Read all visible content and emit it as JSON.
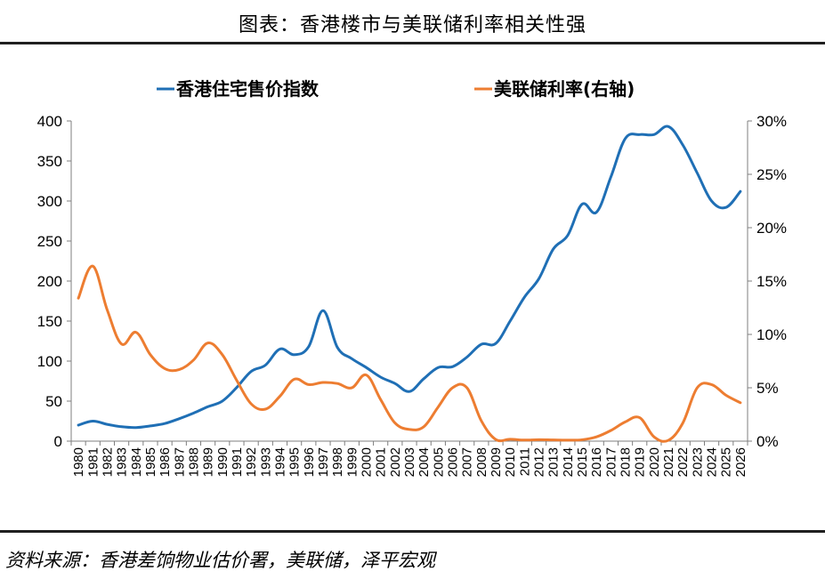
{
  "title": "图表：香港楼市与美联储利率相关性强",
  "source": "资料来源：香港差饷物业估价署，美联储，泽平宏观",
  "chart_data": {
    "type": "line",
    "left_axis": {
      "ylim": [
        0,
        400
      ],
      "ticks": [
        "0",
        "50",
        "100",
        "150",
        "200",
        "250",
        "300",
        "350",
        "400"
      ]
    },
    "right_axis": {
      "ylim": [
        0,
        30
      ],
      "ticks": [
        "0%",
        "5%",
        "10%",
        "15%",
        "20%",
        "25%",
        "30%"
      ]
    },
    "legend_position": "top",
    "grid": false,
    "x": [
      "1980",
      "1981",
      "1982",
      "1983",
      "1984",
      "1985",
      "1986",
      "1987",
      "1988",
      "1989",
      "1990",
      "1991",
      "1992",
      "1993",
      "1994",
      "1995",
      "1996",
      "1997",
      "1998",
      "1999",
      "2000",
      "2001",
      "2002",
      "2003",
      "2004",
      "2005",
      "2006",
      "2007",
      "2008",
      "2009",
      "2010",
      "2011",
      "2012",
      "2013",
      "2014",
      "2015",
      "2016",
      "2017",
      "2018",
      "2019",
      "2020",
      "2021",
      "2022",
      "2023",
      "2024",
      "2025",
      "2026"
    ],
    "series": [
      {
        "name": "香港住宅售价指数",
        "axis": "left",
        "color": "#1f6fb5",
        "values": [
          20,
          25,
          21,
          18,
          17,
          19,
          22,
          28,
          35,
          43,
          50,
          67,
          87,
          95,
          115,
          108,
          118,
          163,
          117,
          103,
          92,
          80,
          72,
          62,
          78,
          92,
          93,
          105,
          121,
          122,
          150,
          180,
          203,
          240,
          257,
          296,
          286,
          330,
          378,
          383,
          383,
          393,
          370,
          335,
          300,
          292,
          312
        ]
      },
      {
        "name": "美联储利率(右轴)",
        "axis": "right",
        "color": "#ed7d31",
        "values": [
          13.4,
          16.4,
          12.3,
          9.1,
          10.2,
          8.1,
          6.8,
          6.7,
          7.6,
          9.2,
          8.1,
          5.7,
          3.5,
          3.0,
          4.2,
          5.8,
          5.3,
          5.5,
          5.4,
          5.0,
          6.2,
          3.9,
          1.7,
          1.1,
          1.35,
          3.2,
          5.0,
          5.0,
          1.9,
          0.16,
          0.18,
          0.1,
          0.14,
          0.11,
          0.09,
          0.13,
          0.4,
          1.0,
          1.8,
          2.2,
          0.4,
          0.08,
          1.7,
          5.0,
          5.3,
          4.3,
          3.6
        ]
      }
    ]
  }
}
